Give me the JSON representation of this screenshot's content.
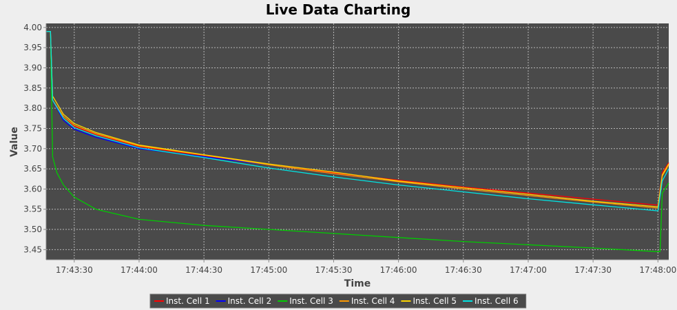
{
  "chart_data": {
    "type": "line",
    "title": "Live Data Charting",
    "xlabel": "Time",
    "ylabel": "Value",
    "ylim": [
      3.425,
      4.01
    ],
    "xlim": [
      "17:43:17",
      "17:48:05"
    ],
    "y_ticks": [
      "4.00",
      "3.95",
      "3.90",
      "3.85",
      "3.80",
      "3.75",
      "3.70",
      "3.65",
      "3.60",
      "3.55",
      "3.50",
      "3.45"
    ],
    "x_ticks": [
      "17:43:30",
      "17:44:00",
      "17:44:30",
      "17:45:00",
      "17:45:30",
      "17:46:00",
      "17:46:30",
      "17:47:00",
      "17:47:30",
      "17:48:00"
    ],
    "grid": true,
    "plot_background": "#4a4a4a",
    "legend_position": "bottom",
    "series": [
      {
        "name": "Inst. Cell 1",
        "color": "#ff0000",
        "points": [
          [
            "17:43:17",
            3.99
          ],
          [
            "17:43:19",
            3.99
          ],
          [
            "17:43:20",
            3.82
          ],
          [
            "17:43:25",
            3.78
          ],
          [
            "17:43:30",
            3.755
          ],
          [
            "17:43:40",
            3.735
          ],
          [
            "17:44:00",
            3.705
          ],
          [
            "17:44:30",
            3.683
          ],
          [
            "17:45:00",
            3.66
          ],
          [
            "17:45:30",
            3.64
          ],
          [
            "17:46:00",
            3.622
          ],
          [
            "17:46:30",
            3.605
          ],
          [
            "17:47:00",
            3.59
          ],
          [
            "17:47:30",
            3.575
          ],
          [
            "17:48:00",
            3.56
          ],
          [
            "17:48:02",
            3.64
          ],
          [
            "17:48:05",
            3.665
          ]
        ]
      },
      {
        "name": "Inst. Cell 2",
        "color": "#0000ff",
        "points": [
          [
            "17:43:17",
            3.99
          ],
          [
            "17:43:19",
            3.99
          ],
          [
            "17:43:20",
            3.82
          ],
          [
            "17:43:25",
            3.77
          ],
          [
            "17:43:30",
            3.748
          ],
          [
            "17:43:40",
            3.728
          ],
          [
            "17:44:00",
            3.7
          ],
          [
            "17:44:30",
            3.68
          ],
          [
            "17:45:00",
            3.66
          ],
          [
            "17:45:30",
            3.638
          ],
          [
            "17:46:00",
            3.618
          ],
          [
            "17:46:30",
            3.6
          ],
          [
            "17:47:00",
            3.584
          ],
          [
            "17:47:30",
            3.57
          ],
          [
            "17:48:00",
            3.556
          ],
          [
            "17:48:02",
            3.635
          ],
          [
            "17:48:05",
            3.66
          ]
        ]
      },
      {
        "name": "Inst. Cell 3",
        "color": "#00cc00",
        "points": [
          [
            "17:43:17",
            3.99
          ],
          [
            "17:43:19",
            3.99
          ],
          [
            "17:43:20",
            3.68
          ],
          [
            "17:43:22",
            3.64
          ],
          [
            "17:43:25",
            3.61
          ],
          [
            "17:43:30",
            3.58
          ],
          [
            "17:43:40",
            3.55
          ],
          [
            "17:44:00",
            3.525
          ],
          [
            "17:44:30",
            3.51
          ],
          [
            "17:45:00",
            3.5
          ],
          [
            "17:45:30",
            3.49
          ],
          [
            "17:46:00",
            3.48
          ],
          [
            "17:46:30",
            3.47
          ],
          [
            "17:47:00",
            3.462
          ],
          [
            "17:47:30",
            3.454
          ],
          [
            "17:48:00",
            3.445
          ],
          [
            "17:48:01",
            3.445
          ],
          [
            "17:48:02",
            3.59
          ],
          [
            "17:48:05",
            3.615
          ]
        ]
      },
      {
        "name": "Inst. Cell 4",
        "color": "#ff9900",
        "points": [
          [
            "17:43:17",
            3.99
          ],
          [
            "17:43:19",
            3.99
          ],
          [
            "17:43:20",
            3.82
          ],
          [
            "17:43:25",
            3.78
          ],
          [
            "17:43:30",
            3.758
          ],
          [
            "17:43:40",
            3.737
          ],
          [
            "17:44:00",
            3.707
          ],
          [
            "17:44:30",
            3.684
          ],
          [
            "17:45:00",
            3.66
          ],
          [
            "17:45:30",
            3.638
          ],
          [
            "17:46:00",
            3.618
          ],
          [
            "17:46:30",
            3.6
          ],
          [
            "17:47:00",
            3.584
          ],
          [
            "17:47:30",
            3.568
          ],
          [
            "17:48:00",
            3.553
          ],
          [
            "17:48:02",
            3.632
          ],
          [
            "17:48:05",
            3.66
          ]
        ]
      },
      {
        "name": "Inst. Cell 5",
        "color": "#ffd700",
        "points": [
          [
            "17:43:17",
            3.99
          ],
          [
            "17:43:19",
            3.99
          ],
          [
            "17:43:20",
            3.83
          ],
          [
            "17:43:25",
            3.785
          ],
          [
            "17:43:30",
            3.762
          ],
          [
            "17:43:40",
            3.74
          ],
          [
            "17:44:00",
            3.709
          ],
          [
            "17:44:30",
            3.685
          ],
          [
            "17:45:00",
            3.662
          ],
          [
            "17:45:30",
            3.642
          ],
          [
            "17:46:00",
            3.62
          ],
          [
            "17:46:30",
            3.603
          ],
          [
            "17:47:00",
            3.587
          ],
          [
            "17:47:30",
            3.57
          ],
          [
            "17:48:00",
            3.556
          ],
          [
            "17:48:02",
            3.635
          ],
          [
            "17:48:05",
            3.662
          ]
        ]
      },
      {
        "name": "Inst. Cell 6",
        "color": "#00e5e5",
        "points": [
          [
            "17:43:17",
            3.99
          ],
          [
            "17:43:19",
            3.99
          ],
          [
            "17:43:20",
            3.82
          ],
          [
            "17:43:25",
            3.775
          ],
          [
            "17:43:30",
            3.752
          ],
          [
            "17:43:40",
            3.732
          ],
          [
            "17:44:00",
            3.702
          ],
          [
            "17:44:30",
            3.678
          ],
          [
            "17:45:00",
            3.652
          ],
          [
            "17:45:30",
            3.63
          ],
          [
            "17:46:00",
            3.61
          ],
          [
            "17:46:30",
            3.593
          ],
          [
            "17:47:00",
            3.576
          ],
          [
            "17:47:30",
            3.561
          ],
          [
            "17:48:00",
            3.546
          ],
          [
            "17:48:02",
            3.62
          ],
          [
            "17:48:05",
            3.65
          ]
        ]
      }
    ]
  }
}
